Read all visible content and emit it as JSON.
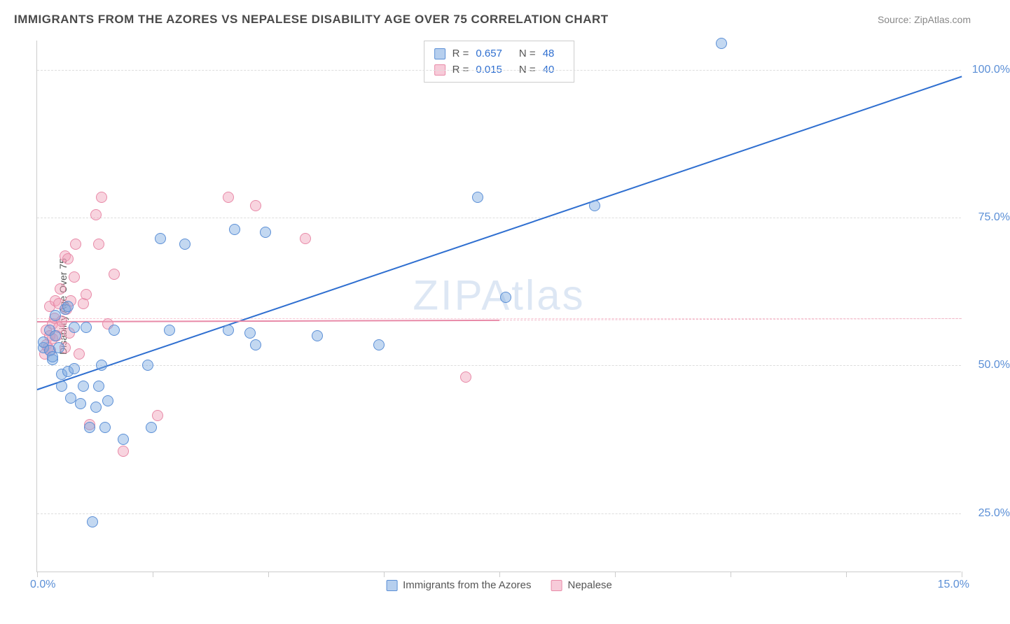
{
  "title": "IMMIGRANTS FROM THE AZORES VS NEPALESE DISABILITY AGE OVER 75 CORRELATION CHART",
  "source_label": "Source: ZipAtlas.com",
  "watermark": "ZIPAtlas",
  "chart": {
    "type": "scatter",
    "x_axis": {
      "min": 0.0,
      "max": 15.0,
      "start_label": "0.0%",
      "end_label": "15.0%",
      "tick_count": 8
    },
    "y_axis": {
      "min": 15.0,
      "max": 105.0,
      "label": "Disability Age Over 75",
      "ticks": [
        {
          "value": 25.0,
          "label": "25.0%"
        },
        {
          "value": 50.0,
          "label": "50.0%"
        },
        {
          "value": 75.0,
          "label": "75.0%"
        },
        {
          "value": 100.0,
          "label": "100.0%"
        }
      ],
      "extra_dashed_at": 58.0
    },
    "background_color": "#ffffff",
    "grid_color": "#dddddd",
    "series": [
      {
        "name": "Immigrants from the Azores",
        "color_fill": "rgba(122,168,224,0.45)",
        "color_stroke": "#5b8fd6",
        "trend_color": "#2f6fd0",
        "R": "0.657",
        "N": "48",
        "trend": {
          "x1": 0.0,
          "y1": 46.0,
          "x2": 15.0,
          "y2": 99.0
        },
        "points": [
          [
            0.1,
            53
          ],
          [
            0.1,
            54
          ],
          [
            0.2,
            52.5
          ],
          [
            0.2,
            56
          ],
          [
            0.25,
            51
          ],
          [
            0.25,
            51.5
          ],
          [
            0.3,
            55
          ],
          [
            0.3,
            58.5
          ],
          [
            0.35,
            53
          ],
          [
            0.4,
            46.5
          ],
          [
            0.4,
            48.5
          ],
          [
            0.45,
            59.5
          ],
          [
            0.5,
            49
          ],
          [
            0.5,
            60
          ],
          [
            0.55,
            44.5
          ],
          [
            0.6,
            49.5
          ],
          [
            0.6,
            56.5
          ],
          [
            0.7,
            43.5
          ],
          [
            0.75,
            46.5
          ],
          [
            0.8,
            56.5
          ],
          [
            0.85,
            39.5
          ],
          [
            0.9,
            23.5
          ],
          [
            0.95,
            43
          ],
          [
            1.0,
            46.5
          ],
          [
            1.05,
            50.0
          ],
          [
            1.1,
            39.5
          ],
          [
            1.15,
            44
          ],
          [
            1.25,
            56.0
          ],
          [
            1.4,
            37.5
          ],
          [
            1.8,
            50
          ],
          [
            1.85,
            39.5
          ],
          [
            2.0,
            71.5
          ],
          [
            2.15,
            56.0
          ],
          [
            2.4,
            70.5
          ],
          [
            3.1,
            56
          ],
          [
            3.2,
            73
          ],
          [
            3.45,
            55.5
          ],
          [
            3.55,
            53.5
          ],
          [
            3.7,
            72.5
          ],
          [
            4.55,
            55
          ],
          [
            5.55,
            53.5
          ],
          [
            7.15,
            78.5
          ],
          [
            7.6,
            61.5
          ],
          [
            9.05,
            77.0
          ],
          [
            11.1,
            104.5
          ]
        ]
      },
      {
        "name": "Nepalese",
        "color_fill": "rgba(240,160,185,0.45)",
        "color_stroke": "#e88aa8",
        "trend_color": "#e88aa8",
        "R": "0.015",
        "N": "40",
        "trend": {
          "x1": 0.0,
          "y1": 57.5,
          "x2": 15.0,
          "y2": 58.0
        },
        "trend_solid_until_x": 7.5,
        "points": [
          [
            0.12,
            52
          ],
          [
            0.15,
            53.5
          ],
          [
            0.15,
            56
          ],
          [
            0.18,
            53
          ],
          [
            0.2,
            55
          ],
          [
            0.2,
            60
          ],
          [
            0.22,
            52.5
          ],
          [
            0.25,
            54.5
          ],
          [
            0.25,
            57
          ],
          [
            0.28,
            58
          ],
          [
            0.3,
            61
          ],
          [
            0.32,
            55
          ],
          [
            0.35,
            56.5
          ],
          [
            0.35,
            60.5
          ],
          [
            0.38,
            63
          ],
          [
            0.4,
            57.5
          ],
          [
            0.45,
            68.5
          ],
          [
            0.45,
            53
          ],
          [
            0.48,
            59.5
          ],
          [
            0.5,
            68
          ],
          [
            0.52,
            55.5
          ],
          [
            0.55,
            61
          ],
          [
            0.6,
            65
          ],
          [
            0.62,
            70.5
          ],
          [
            0.68,
            52
          ],
          [
            0.75,
            60.5
          ],
          [
            0.8,
            62
          ],
          [
            0.85,
            40
          ],
          [
            0.95,
            75.5
          ],
          [
            1.0,
            70.5
          ],
          [
            1.05,
            78.5
          ],
          [
            1.15,
            57
          ],
          [
            1.25,
            65.5
          ],
          [
            1.4,
            35.5
          ],
          [
            1.95,
            41.5
          ],
          [
            3.1,
            78.5
          ],
          [
            3.55,
            77
          ],
          [
            4.35,
            71.5
          ],
          [
            6.95,
            48
          ]
        ]
      }
    ],
    "legend": {
      "bottom_items": [
        "Immigrants from the Azores",
        "Nepalese"
      ]
    }
  }
}
